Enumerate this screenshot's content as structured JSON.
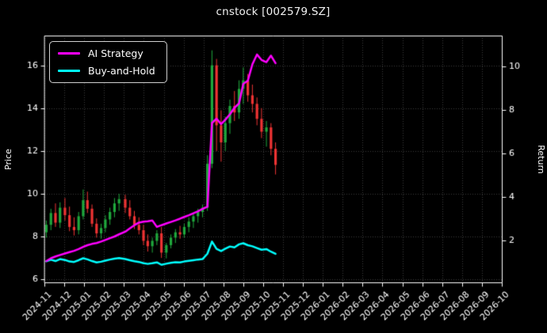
{
  "window": {
    "title": "cnstock [002579.SZ]"
  },
  "legend": {
    "items": [
      {
        "label": "AI Strategy",
        "color": "#ff00ff"
      },
      {
        "label": "Buy-and-Hold",
        "color": "#00ffff"
      }
    ]
  },
  "axes": {
    "left": {
      "label": "Price",
      "ticks": [
        6,
        8,
        10,
        12,
        14,
        16
      ],
      "range": [
        5.86,
        17.39
      ]
    },
    "right": {
      "label": "Return",
      "ticks": [
        2,
        4,
        6,
        8,
        10
      ],
      "range": [
        0.07,
        11.42
      ]
    },
    "x": {
      "tick_labels": [
        "2024-11",
        "2024-12",
        "2025-01",
        "2025-02",
        "2025-03",
        "2025-04",
        "2025-05",
        "2025-06",
        "2025-07",
        "2025-08",
        "2025-09",
        "2025-10",
        "2025-11",
        "2025-12",
        "2026-01",
        "2026-02",
        "2026-03",
        "2026-04",
        "2026-05",
        "2026-06",
        "2026-07",
        "2026-08",
        "2026-09",
        "2026-10"
      ]
    }
  },
  "chart_data": {
    "type": "candlestick",
    "title": "cnstock [002579.SZ]",
    "note": "daily candles in source approximated at weekly granularity; lines plotted on right Return axis, candles on left Price axis",
    "background": "#000000",
    "grid": true,
    "colors": {
      "up": "#1fa83c",
      "down": "#ef3333",
      "ai_line": "#ff00ff",
      "bh_line": "#00ffff",
      "grid": "#3c3c3c",
      "text": "#ffffff",
      "spine": "#ffffff"
    },
    "x_domain": [
      "2024-11",
      "2026-10"
    ],
    "price_range": [
      5.86,
      17.39
    ],
    "return_range": [
      0.07,
      11.42
    ],
    "dates": [
      "2024-11-04",
      "2024-11-11",
      "2024-11-18",
      "2024-11-25",
      "2024-12-02",
      "2024-12-09",
      "2024-12-16",
      "2024-12-23",
      "2024-12-30",
      "2025-01-06",
      "2025-01-13",
      "2025-01-20",
      "2025-01-27",
      "2025-02-03",
      "2025-02-10",
      "2025-02-17",
      "2025-02-24",
      "2025-03-03",
      "2025-03-10",
      "2025-03-17",
      "2025-03-24",
      "2025-03-31",
      "2025-04-07",
      "2025-04-14",
      "2025-04-21",
      "2025-04-28",
      "2025-05-05",
      "2025-05-12",
      "2025-05-19",
      "2025-05-26",
      "2025-06-02",
      "2025-06-09",
      "2025-06-16",
      "2025-06-23",
      "2025-06-30",
      "2025-07-07",
      "2025-07-14",
      "2025-07-21",
      "2025-07-28",
      "2025-08-04",
      "2025-08-11",
      "2025-08-18",
      "2025-08-25",
      "2025-09-01",
      "2025-09-08",
      "2025-09-15",
      "2025-09-22",
      "2025-09-29",
      "2025-10-06",
      "2025-10-13",
      "2025-10-20"
    ],
    "candles": [
      {
        "o": 8.2,
        "h": 8.75,
        "l": 7.95,
        "c": 8.55
      },
      {
        "o": 8.55,
        "h": 9.3,
        "l": 8.3,
        "c": 9.1
      },
      {
        "o": 9.1,
        "h": 9.55,
        "l": 8.45,
        "c": 8.65
      },
      {
        "o": 8.65,
        "h": 9.6,
        "l": 8.4,
        "c": 9.35
      },
      {
        "o": 9.35,
        "h": 9.8,
        "l": 8.75,
        "c": 9.0
      },
      {
        "o": 9.0,
        "h": 9.4,
        "l": 8.25,
        "c": 8.45
      },
      {
        "o": 8.45,
        "h": 8.9,
        "l": 8.05,
        "c": 8.3
      },
      {
        "o": 8.3,
        "h": 9.15,
        "l": 8.1,
        "c": 8.95
      },
      {
        "o": 8.95,
        "h": 10.2,
        "l": 8.8,
        "c": 9.7
      },
      {
        "o": 9.7,
        "h": 10.1,
        "l": 9.1,
        "c": 9.3
      },
      {
        "o": 9.3,
        "h": 9.5,
        "l": 8.45,
        "c": 8.6
      },
      {
        "o": 8.6,
        "h": 8.85,
        "l": 7.95,
        "c": 8.15
      },
      {
        "o": 8.15,
        "h": 8.6,
        "l": 7.9,
        "c": 8.4
      },
      {
        "o": 8.4,
        "h": 9.0,
        "l": 8.2,
        "c": 8.8
      },
      {
        "o": 8.8,
        "h": 9.35,
        "l": 8.55,
        "c": 9.15
      },
      {
        "o": 9.15,
        "h": 9.8,
        "l": 8.9,
        "c": 9.55
      },
      {
        "o": 9.55,
        "h": 10.0,
        "l": 9.2,
        "c": 9.75
      },
      {
        "o": 9.75,
        "h": 9.95,
        "l": 9.1,
        "c": 9.35
      },
      {
        "o": 9.35,
        "h": 9.7,
        "l": 8.8,
        "c": 8.95
      },
      {
        "o": 8.95,
        "h": 9.2,
        "l": 8.35,
        "c": 8.55
      },
      {
        "o": 8.55,
        "h": 8.9,
        "l": 8.1,
        "c": 8.3
      },
      {
        "o": 8.3,
        "h": 8.55,
        "l": 7.6,
        "c": 7.8
      },
      {
        "o": 7.8,
        "h": 8.1,
        "l": 7.3,
        "c": 7.55
      },
      {
        "o": 7.55,
        "h": 7.95,
        "l": 7.25,
        "c": 7.8
      },
      {
        "o": 7.8,
        "h": 8.3,
        "l": 7.6,
        "c": 8.15
      },
      {
        "o": 8.15,
        "h": 8.45,
        "l": 7.0,
        "c": 7.25
      },
      {
        "o": 7.25,
        "h": 7.7,
        "l": 6.98,
        "c": 7.6
      },
      {
        "o": 7.6,
        "h": 8.1,
        "l": 7.45,
        "c": 7.95
      },
      {
        "o": 7.95,
        "h": 8.35,
        "l": 7.7,
        "c": 8.2
      },
      {
        "o": 8.2,
        "h": 8.5,
        "l": 7.9,
        "c": 8.1
      },
      {
        "o": 8.1,
        "h": 8.6,
        "l": 7.95,
        "c": 8.45
      },
      {
        "o": 8.45,
        "h": 8.9,
        "l": 8.2,
        "c": 8.7
      },
      {
        "o": 8.7,
        "h": 9.1,
        "l": 8.4,
        "c": 8.95
      },
      {
        "o": 8.95,
        "h": 9.3,
        "l": 8.65,
        "c": 9.15
      },
      {
        "o": 9.15,
        "h": 9.5,
        "l": 8.9,
        "c": 9.35
      },
      {
        "o": 9.35,
        "h": 11.8,
        "l": 9.2,
        "c": 11.4
      },
      {
        "o": 11.4,
        "h": 16.7,
        "l": 11.2,
        "c": 16.0
      },
      {
        "o": 16.0,
        "h": 16.3,
        "l": 12.0,
        "c": 13.2
      },
      {
        "o": 13.2,
        "h": 13.9,
        "l": 11.5,
        "c": 12.4
      },
      {
        "o": 12.4,
        "h": 13.6,
        "l": 12.0,
        "c": 13.3
      },
      {
        "o": 13.3,
        "h": 14.4,
        "l": 12.8,
        "c": 14.1
      },
      {
        "o": 14.1,
        "h": 14.8,
        "l": 13.4,
        "c": 13.8
      },
      {
        "o": 13.8,
        "h": 15.3,
        "l": 13.5,
        "c": 14.9
      },
      {
        "o": 14.9,
        "h": 15.9,
        "l": 14.2,
        "c": 15.3
      },
      {
        "o": 15.3,
        "h": 15.6,
        "l": 14.3,
        "c": 14.6
      },
      {
        "o": 14.6,
        "h": 15.1,
        "l": 13.8,
        "c": 14.2
      },
      {
        "o": 14.2,
        "h": 14.5,
        "l": 13.2,
        "c": 13.5
      },
      {
        "o": 13.5,
        "h": 14.0,
        "l": 12.6,
        "c": 12.9
      },
      {
        "o": 12.9,
        "h": 13.4,
        "l": 12.2,
        "c": 13.1
      },
      {
        "o": 13.1,
        "h": 13.3,
        "l": 11.8,
        "c": 12.1
      },
      {
        "o": 12.1,
        "h": 12.4,
        "l": 10.9,
        "c": 11.35
      }
    ],
    "series": [
      {
        "name": "AI Strategy",
        "axis": "right",
        "color": "#ff00ff",
        "values": [
          1.05,
          1.18,
          1.26,
          1.33,
          1.4,
          1.46,
          1.52,
          1.6,
          1.7,
          1.78,
          1.84,
          1.88,
          1.95,
          2.02,
          2.1,
          2.18,
          2.28,
          2.4,
          2.55,
          2.7,
          2.82,
          2.86,
          2.88,
          2.92,
          2.62,
          2.7,
          2.78,
          2.85,
          2.92,
          3.0,
          3.08,
          3.16,
          3.25,
          3.34,
          3.45,
          3.55,
          7.4,
          7.6,
          7.35,
          7.55,
          7.8,
          8.1,
          8.3,
          9.2,
          9.35,
          10.1,
          10.55,
          10.3,
          10.2,
          10.5,
          10.15
        ]
      },
      {
        "name": "Buy-and-Hold",
        "axis": "right",
        "color": "#00ffff",
        "values": [
          1.04,
          1.11,
          1.05,
          1.14,
          1.1,
          1.03,
          1.01,
          1.09,
          1.18,
          1.13,
          1.05,
          0.99,
          1.02,
          1.07,
          1.12,
          1.16,
          1.19,
          1.14,
          1.09,
          1.04,
          1.01,
          0.95,
          0.92,
          0.95,
          0.99,
          0.88,
          0.93,
          0.97,
          1.0,
          0.99,
          1.03,
          1.06,
          1.09,
          1.12,
          1.14,
          1.39,
          1.95,
          1.61,
          1.51,
          1.62,
          1.72,
          1.68,
          1.82,
          1.87,
          1.78,
          1.73,
          1.65,
          1.57,
          1.6,
          1.48,
          1.38
        ]
      }
    ]
  }
}
